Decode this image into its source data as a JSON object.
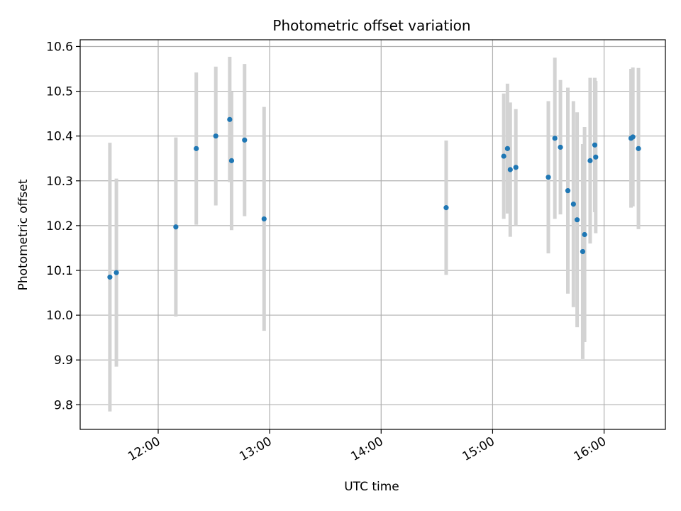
{
  "chart_data": {
    "type": "scatter",
    "title": "Photometric offset variation",
    "xlabel": "UTC time",
    "ylabel": "Photometric offset",
    "x_axis": {
      "kind": "time",
      "range": [
        "11:18",
        "16:33"
      ],
      "ticks": [
        "12:00",
        "13:00",
        "14:00",
        "15:00",
        "16:00"
      ]
    },
    "y_axis": {
      "range": [
        9.745,
        10.615
      ],
      "ticks": [
        9.8,
        9.9,
        10.0,
        10.1,
        10.2,
        10.3,
        10.4,
        10.5,
        10.6
      ]
    },
    "grid": true,
    "colors": {
      "marker": "#1f77b4",
      "errorbar": "#d3d3d3",
      "grid": "#b0b0b0"
    },
    "points": [
      {
        "t": "11:34:00",
        "y": 10.085,
        "err": 0.3
      },
      {
        "t": "11:37:30",
        "y": 10.095,
        "err": 0.21
      },
      {
        "t": "12:09:30",
        "y": 10.197,
        "err": 0.2
      },
      {
        "t": "12:20:30",
        "y": 10.372,
        "err": 0.17
      },
      {
        "t": "12:31:00",
        "y": 10.4,
        "err": 0.155
      },
      {
        "t": "12:38:30",
        "y": 10.437,
        "err": 0.14
      },
      {
        "t": "12:39:30",
        "y": 10.345,
        "err": 0.155
      },
      {
        "t": "12:46:30",
        "y": 10.391,
        "err": 0.17
      },
      {
        "t": "12:57:00",
        "y": 10.215,
        "err": 0.25
      },
      {
        "t": "14:35:00",
        "y": 10.24,
        "err": 0.15
      },
      {
        "t": "15:06:00",
        "y": 10.355,
        "err": 0.14
      },
      {
        "t": "15:08:00",
        "y": 10.372,
        "err": 0.145
      },
      {
        "t": "15:09:30",
        "y": 10.325,
        "err": 0.15
      },
      {
        "t": "15:12:30",
        "y": 10.33,
        "err": 0.13
      },
      {
        "t": "15:30:00",
        "y": 10.308,
        "err": 0.17
      },
      {
        "t": "15:33:30",
        "y": 10.395,
        "err": 0.18
      },
      {
        "t": "15:36:30",
        "y": 10.375,
        "err": 0.15
      },
      {
        "t": "15:40:30",
        "y": 10.278,
        "err": 0.23
      },
      {
        "t": "15:43:30",
        "y": 10.248,
        "err": 0.23
      },
      {
        "t": "15:45:30",
        "y": 10.213,
        "err": 0.24
      },
      {
        "t": "15:48:30",
        "y": 10.142,
        "err": 0.24
      },
      {
        "t": "15:49:30",
        "y": 10.18,
        "err": 0.24
      },
      {
        "t": "15:52:30",
        "y": 10.345,
        "err": 0.185
      },
      {
        "t": "15:55:00",
        "y": 10.38,
        "err": 0.15
      },
      {
        "t": "15:55:30",
        "y": 10.353,
        "err": 0.17
      },
      {
        "t": "16:14:30",
        "y": 10.395,
        "err": 0.155
      },
      {
        "t": "16:15:30",
        "y": 10.398,
        "err": 0.155
      },
      {
        "t": "16:18:30",
        "y": 10.372,
        "err": 0.18
      }
    ]
  }
}
